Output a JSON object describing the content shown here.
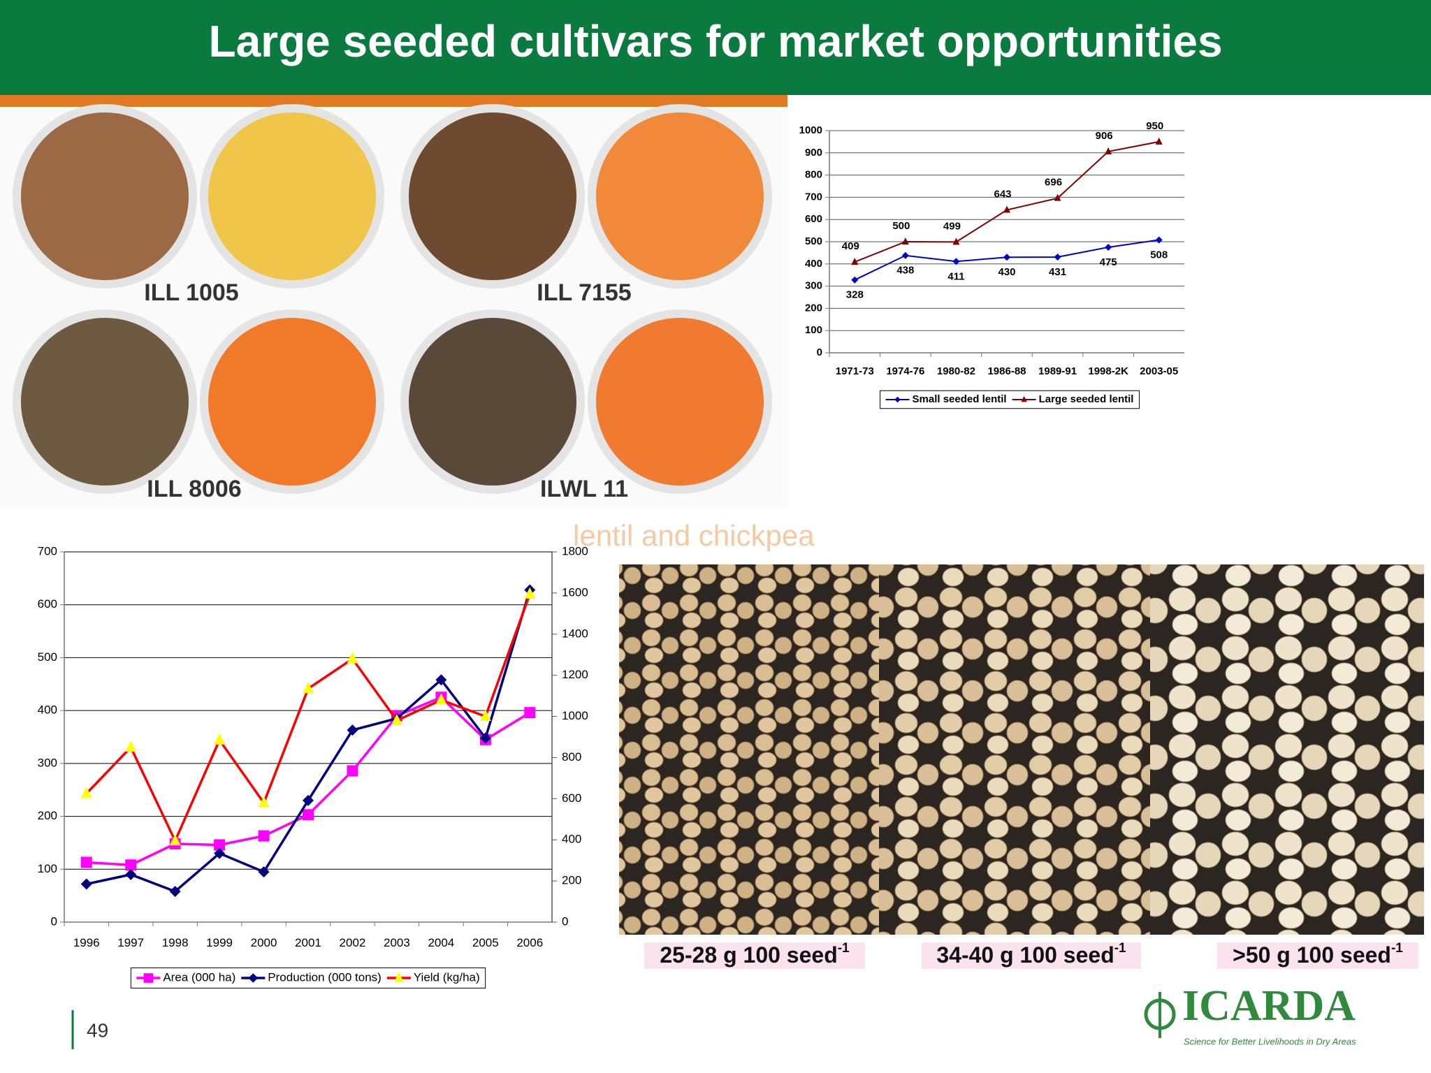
{
  "title": "Large seeded cultivars for market opportunities",
  "lentil_photo_labels": [
    "ILL 1005",
    "ILL 7155",
    "ILL 8006",
    "ILWL 11"
  ],
  "overlay_text": "lentil and chickpea",
  "chickpea_labels": [
    {
      "text": "25-28 g 100 seed",
      "sup": "-1"
    },
    {
      "text": "34-40 g 100 seed",
      "sup": "-1"
    },
    {
      "text": ">50 g 100 seed",
      "sup": "-1"
    }
  ],
  "page_number": "49",
  "logo": {
    "name": "ICARDA",
    "tagline": "Science for Better Livelihoods in Dry Areas"
  },
  "chart_data": [
    {
      "type": "line",
      "categories": [
        "1971-73",
        "1974-76",
        "1980-82",
        "1986-88",
        "1989-91",
        "1998-2K",
        "2003-05"
      ],
      "series": [
        {
          "name": "Small seeded lentil",
          "color": "#0000cc",
          "marker": "diamond",
          "values": [
            328,
            438,
            411,
            430,
            431,
            475,
            508
          ]
        },
        {
          "name": "Large seeded lentil",
          "color": "#800000",
          "marker": "triangle",
          "values": [
            409,
            500,
            499,
            643,
            696,
            906,
            950
          ]
        }
      ],
      "ylim": [
        0,
        1000
      ],
      "yticks": [
        0,
        100,
        200,
        300,
        400,
        500,
        600,
        700,
        800,
        900,
        1000
      ],
      "grid": true,
      "data_labels": true,
      "legend": "bottom"
    },
    {
      "type": "line",
      "categories": [
        "1996",
        "1997",
        "1998",
        "1999",
        "2000",
        "2001",
        "2002",
        "2003",
        "2004",
        "2005",
        "2006"
      ],
      "series": [
        {
          "name": "Area (000 ha)",
          "color": "#ff00ff",
          "marker": "square",
          "values": [
            113,
            108,
            148,
            146,
            163,
            203,
            286,
            390,
            425,
            345,
            396
          ]
        },
        {
          "name": "Production (000 tons)",
          "color": "#000080",
          "marker": "diamond",
          "values": [
            72,
            90,
            58,
            130,
            95,
            230,
            363,
            385,
            458,
            348,
            628
          ]
        },
        {
          "name": "Yield (kg/ha)",
          "color": "#ff0000",
          "marker_color": "#ffff00",
          "marker": "triangle",
          "axis": "y2",
          "values": [
            625,
            850,
            395,
            885,
            580,
            1135,
            1280,
            980,
            1080,
            1000,
            1595
          ]
        }
      ],
      "ylim": [
        0,
        700
      ],
      "yticks": [
        0,
        100,
        200,
        300,
        400,
        500,
        600,
        700
      ],
      "y2lim": [
        0,
        1800
      ],
      "y2ticks": [
        0,
        200,
        400,
        600,
        800,
        1000,
        1200,
        1400,
        1600,
        1800
      ],
      "grid": true,
      "data_labels": false,
      "legend": "bottom"
    }
  ]
}
